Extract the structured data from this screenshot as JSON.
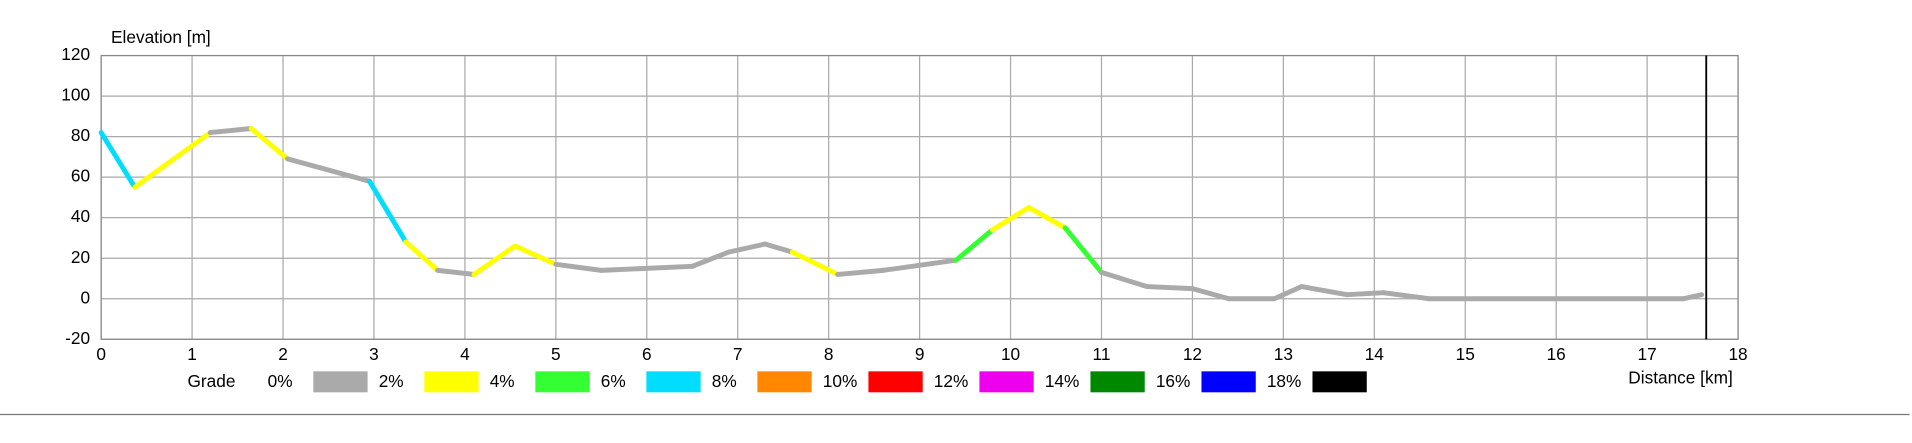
{
  "chart_data": {
    "type": "line",
    "y_label": "Elevation [m]",
    "x_label": "Distance [km]",
    "legend_title": "Grade",
    "xlim": [
      0,
      18
    ],
    "xticks": [
      0,
      1,
      2,
      3,
      4,
      5,
      6,
      7,
      8,
      9,
      10,
      11,
      12,
      13,
      14,
      15,
      16,
      17,
      18
    ],
    "ylim": [
      -20,
      120
    ],
    "yticks": [
      -20,
      0,
      20,
      40,
      60,
      80,
      100,
      120
    ],
    "grid": true,
    "cursor_x": 17.65,
    "legend": [
      {
        "name": "0%",
        "color": "#aaaaaa"
      },
      {
        "name": "2%",
        "color": "#ffff00"
      },
      {
        "name": "4%",
        "color": "#33ff33"
      },
      {
        "name": "6%",
        "color": "#00ddff"
      },
      {
        "name": "8%",
        "color": "#ff8800"
      },
      {
        "name": "10%",
        "color": "#ff0000"
      },
      {
        "name": "12%",
        "color": "#ee00ee"
      },
      {
        "name": "14%",
        "color": "#008800"
      },
      {
        "name": "16%",
        "color": "#0000ff"
      },
      {
        "name": "18%",
        "color": "#000000"
      }
    ],
    "series": [
      {
        "x": [
          0,
          0.37,
          1.2,
          1.65,
          2.05,
          2.95,
          3.35,
          3.7,
          4.1,
          4.55,
          5,
          5.5,
          6.5,
          6.9,
          7.3,
          7.6,
          8.1,
          8.6,
          9.4,
          9.8,
          10.2,
          10.6,
          11,
          11.5,
          12,
          12.4,
          12.9,
          13.2,
          13.7,
          14.1,
          14.6,
          17.4,
          17.6
        ],
        "values": [
          82,
          55,
          82,
          84,
          69,
          58,
          28,
          14,
          12,
          26,
          17,
          14,
          16,
          23,
          27,
          23,
          12,
          14,
          19,
          34,
          45,
          35,
          13,
          6,
          5,
          0,
          0,
          6,
          2,
          3,
          0,
          0,
          2
        ],
        "segment_colors": [
          "#00ddff",
          "#ffff00",
          "#aaaaaa",
          "#ffff00",
          "#aaaaaa",
          "#00ddff",
          "#ffff00",
          "#aaaaaa",
          "#ffff00",
          "#ffff00",
          "#aaaaaa",
          "#aaaaaa",
          "#aaaaaa",
          "#aaaaaa",
          "#aaaaaa",
          "#ffff00",
          "#aaaaaa",
          "#aaaaaa",
          "#33ff33",
          "#ffff00",
          "#ffff00",
          "#33ff33",
          "#aaaaaa",
          "#aaaaaa",
          "#aaaaaa",
          "#aaaaaa",
          "#aaaaaa",
          "#aaaaaa",
          "#aaaaaa",
          "#aaaaaa",
          "#aaaaaa",
          "#aaaaaa"
        ]
      }
    ]
  }
}
